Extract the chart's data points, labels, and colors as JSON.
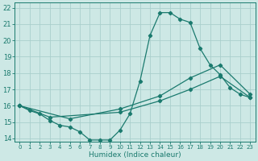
{
  "xlabel": "Humidex (Indice chaleur)",
  "bg_color": "#cde8e5",
  "grid_color": "#aacfcc",
  "line_color": "#1a7a6e",
  "xlim": [
    -0.5,
    23.5
  ],
  "ylim": [
    13.8,
    22.3
  ],
  "xticks": [
    0,
    1,
    2,
    3,
    4,
    5,
    6,
    7,
    8,
    9,
    10,
    11,
    12,
    13,
    14,
    15,
    16,
    17,
    18,
    19,
    20,
    21,
    22,
    23
  ],
  "yticks": [
    14,
    15,
    16,
    17,
    18,
    19,
    20,
    21,
    22
  ],
  "line1_x": [
    0,
    1,
    2,
    3,
    4,
    5,
    6,
    7,
    8,
    9,
    10,
    11,
    12,
    13,
    14,
    15,
    16,
    17,
    18,
    19,
    20,
    21,
    22,
    23
  ],
  "line1_y": [
    16.0,
    15.7,
    15.5,
    15.1,
    14.8,
    14.7,
    14.4,
    13.9,
    13.9,
    13.9,
    14.5,
    15.5,
    17.5,
    20.3,
    21.7,
    21.7,
    21.3,
    21.1,
    19.5,
    18.5,
    17.9,
    17.1,
    16.7,
    16.5
  ],
  "line2_x": [
    0,
    3,
    10,
    14,
    17,
    20,
    23
  ],
  "line2_y": [
    16.0,
    15.3,
    15.6,
    16.3,
    17.0,
    17.8,
    16.5
  ],
  "line3_x": [
    0,
    5,
    10,
    14,
    17,
    20,
    23
  ],
  "line3_y": [
    16.0,
    15.2,
    15.8,
    16.6,
    17.7,
    18.5,
    16.7
  ],
  "tick_labelsize": 5.5,
  "xlabel_fontsize": 6.5
}
